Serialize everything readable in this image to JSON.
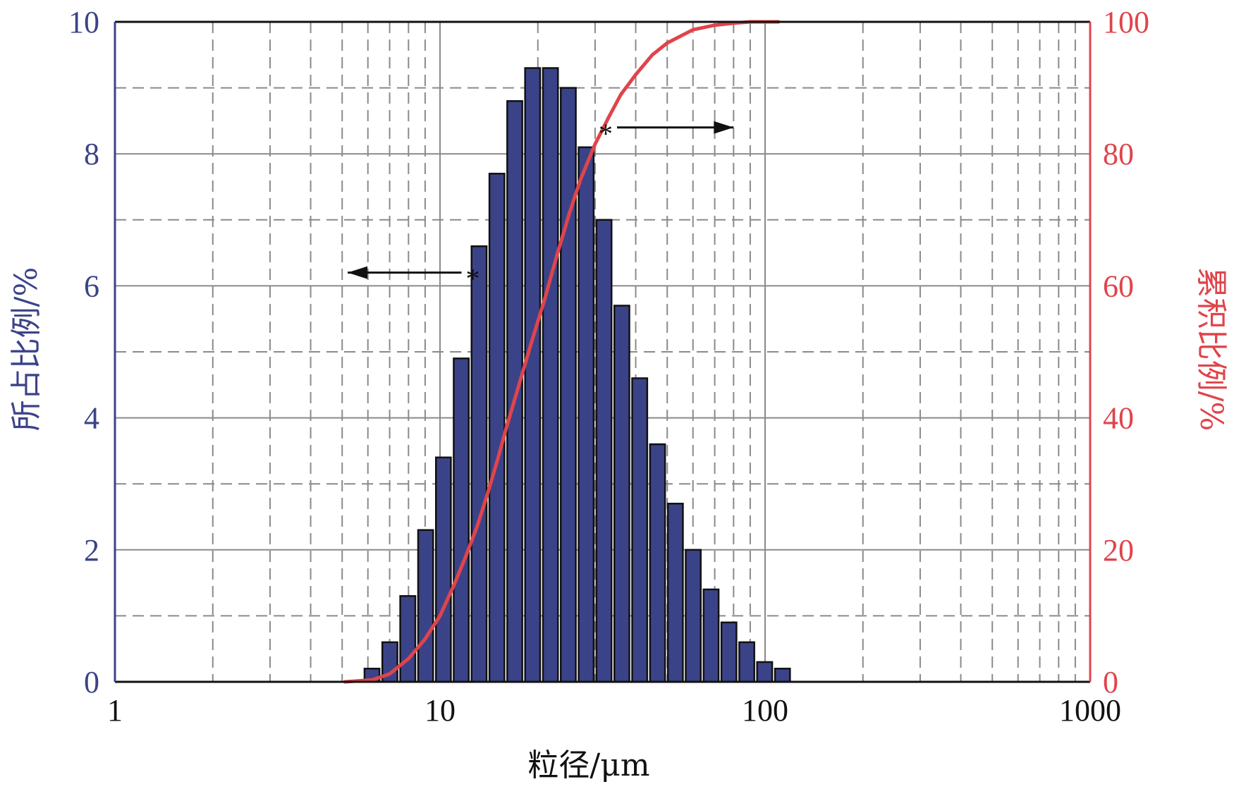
{
  "chart_data": {
    "type": "bar",
    "xscale": "log",
    "xlim": [
      1,
      1000
    ],
    "xticks": [
      1,
      10,
      100,
      1000
    ],
    "xtick_labels": [
      "1",
      "10",
      "100",
      "1000"
    ],
    "xlabel": "粒径/μm",
    "ylabel_left": "所占比例/%",
    "ylabel_right": "累积比例/%",
    "ylim_left": [
      0,
      10
    ],
    "ylim_right": [
      0,
      100
    ],
    "yticks_left": [
      "0",
      "2",
      "4",
      "6",
      "8",
      "10"
    ],
    "yticks_right": [
      "0",
      "20",
      "40",
      "60",
      "80",
      "100"
    ],
    "grid": true,
    "colors": {
      "bars": "#3b4388",
      "curve": "#e0444b",
      "left_axis": "#3b4388",
      "right_axis": "#e0444b"
    },
    "bar_x_edges": [
      5.8,
      6.58,
      7.47,
      8.48,
      9.62,
      10.91,
      12.38,
      14.05,
      15.94,
      18.09,
      20.53,
      23.29,
      26.43,
      29.99,
      34.04,
      38.62,
      43.83,
      49.73,
      56.43,
      64.04,
      72.67,
      82.46,
      93.57,
      106.2,
      120.5
    ],
    "bar_values": [
      0.2,
      0.6,
      1.3,
      2.3,
      3.4,
      4.9,
      6.6,
      7.7,
      8.8,
      9.3,
      9.3,
      9.0,
      8.1,
      7.0,
      5.7,
      4.6,
      3.6,
      2.7,
      2.0,
      1.4,
      0.9,
      0.6,
      0.3,
      0.2
    ],
    "cumulative_curve": {
      "x": [
        5.1,
        6.2,
        7.0,
        8.0,
        9.0,
        10.0,
        11.0,
        12.0,
        13.0,
        14.0,
        15.0,
        16.0,
        17.5,
        19.0,
        21.0,
        23.0,
        25.0,
        27.0,
        30.0,
        33.0,
        36.0,
        40.0,
        45.0,
        50.0,
        60.0,
        70.0,
        80.0,
        90.0,
        100.0,
        110.0
      ],
      "y": [
        0.0,
        0.3,
        1.2,
        3.5,
        6.5,
        10.0,
        14.5,
        19.0,
        23.5,
        28.5,
        33.5,
        38.5,
        45.0,
        51.0,
        58.0,
        65.0,
        71.0,
        76.0,
        81.5,
        85.5,
        89.0,
        92.0,
        95.0,
        96.8,
        98.8,
        99.5,
        99.8,
        100.0,
        100.0,
        100.0
      ]
    },
    "annotations": [
      {
        "text": "*",
        "x": 12.0,
        "y_left": 6.2,
        "arrow": "left",
        "arrow_end_x": 5.2
      },
      {
        "text": "*",
        "x": 34.0,
        "y_left": 8.4,
        "arrow": "right",
        "arrow_end_x": 80.0
      }
    ]
  }
}
